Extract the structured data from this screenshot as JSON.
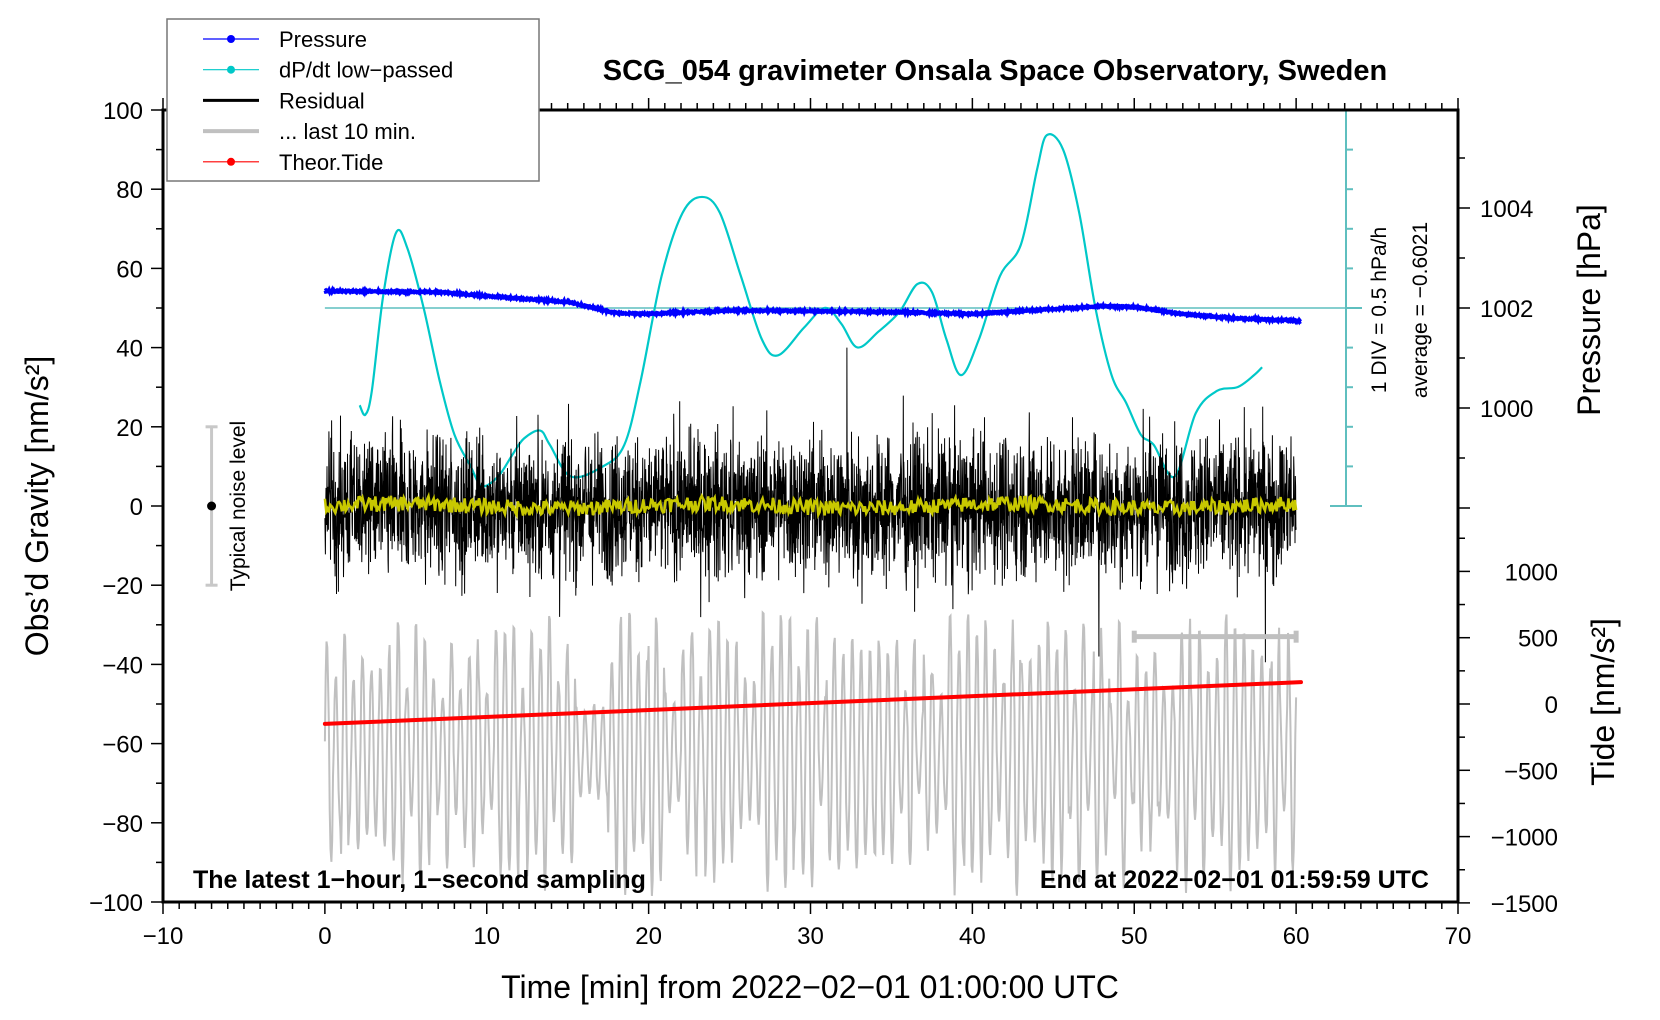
{
  "chart_data": {
    "type": "line",
    "title": "SCG_054 gravimeter Onsala Space Observatory, Sweden",
    "xlabel": "Time [min] from 2022−02−01 01:00:00 UTC",
    "ylabel": "Obs’d Gravity [nm/s²]",
    "ylabel_right_top": "Pressure [hPa]",
    "ylabel_right_bottom": "Tide [nm/s²]",
    "xlim": [
      -10,
      70
    ],
    "ylim": [
      -100,
      100
    ],
    "grid": false,
    "legend_position": "top-left",
    "x_ticks": [
      "−10",
      "0",
      "10",
      "20",
      "30",
      "40",
      "50",
      "60",
      "70"
    ],
    "x_tick_values": [
      -10,
      0,
      10,
      20,
      30,
      40,
      50,
      60,
      70
    ],
    "y_ticks": [
      "100",
      "80",
      "60",
      "40",
      "20",
      "0",
      "−20",
      "−40",
      "−60",
      "−80",
      "−100"
    ],
    "y_tick_values": [
      100,
      80,
      60,
      40,
      20,
      0,
      -20,
      -40,
      -60,
      -80,
      -100
    ],
    "pressure_ticks": [
      "1004",
      "1002",
      "1000"
    ],
    "pressure_tick_values": [
      1004,
      1002,
      1000
    ],
    "tide_ticks": [
      "1000",
      "500",
      "0",
      "−500",
      "−1000",
      "−1500"
    ],
    "tide_tick_values": [
      1000,
      500,
      0,
      -500,
      -1000,
      -1500
    ],
    "annotations": {
      "bottom_left": "The latest 1−hour, 1−second sampling",
      "bottom_right": "End at 2022−02−01 01:59:59 UTC",
      "dpdt_scale": "1 DIV = 0.5 hPa/h",
      "dpdt_average": "average = −0.6021",
      "noise_label": "Typical noise level"
    },
    "dpdt_scale_hpa_per_h_per_div": 0.5,
    "dpdt_average": -0.6021,
    "noise_level_range": [
      -20,
      20
    ],
    "noise_level_time": -7,
    "last10_bar": {
      "t": [
        50,
        60
      ],
      "value": -33
    },
    "legend": [
      {
        "label": "Pressure",
        "color": "#0000ff",
        "style": "line-dot"
      },
      {
        "label": "dP/dt low−passed",
        "color": "#00c8c8",
        "style": "line-dot"
      },
      {
        "label": "Residual",
        "color": "#000000",
        "style": "line"
      },
      {
        "label": "... last 10 min.",
        "color": "#c0c0c0",
        "style": "thick-line"
      },
      {
        "label": "Theor.Tide",
        "color": "#ff0000",
        "style": "line-dot"
      }
    ],
    "series": [
      {
        "name": "Pressure",
        "axis": "pressure_hPa",
        "color": "#0000ff",
        "t": [
          0,
          5,
          7,
          10,
          15,
          18,
          20,
          25,
          30,
          35,
          40,
          45,
          48,
          50,
          53,
          56,
          60.3
        ],
        "values": [
          1002.34,
          1002.32,
          1002.32,
          1002.24,
          1002.12,
          1001.9,
          1001.88,
          1001.95,
          1001.94,
          1001.92,
          1001.88,
          1001.98,
          1002.04,
          1002.02,
          1001.88,
          1001.8,
          1001.74
        ]
      },
      {
        "name": "dP/dt low-passed",
        "axis": "hPa_per_h",
        "color": "#00c8c8",
        "t": [
          2.15,
          2.5,
          2.9,
          3.6,
          4.4,
          5.1,
          6.1,
          7.1,
          8,
          9,
          9.7,
          10.7,
          11.6,
          12.3,
          13.3,
          13.9,
          15.2,
          17.2,
          18.5,
          19.5,
          20.8,
          22.1,
          23.3,
          24.4,
          25.7,
          27,
          28,
          29.6,
          30.9,
          31.9,
          32.9,
          34.2,
          35.5,
          36.6,
          37.5,
          38.4,
          39.3,
          40.4,
          41.7,
          43,
          44,
          44.6,
          45.6,
          46.6,
          47.6,
          48.6,
          49.5,
          50.4,
          51.2,
          52.5,
          53.8,
          55.1,
          56.4,
          57.4,
          57.9
        ],
        "values": [
          -1.83,
          -1.95,
          -1.65,
          -0.45,
          0.35,
          0.15,
          -0.6,
          -1.53,
          -2.2,
          -2.6,
          -2.85,
          -2.73,
          -2.45,
          -2.25,
          -2.15,
          -2.33,
          -2.73,
          -2.6,
          -2.33,
          -1.53,
          -0.2,
          0.6,
          0.8,
          0.6,
          -0.2,
          -1.0,
          -1.2,
          -0.85,
          -0.6,
          -0.8,
          -1.1,
          -0.9,
          -0.65,
          -0.3,
          -0.4,
          -1.0,
          -1.45,
          -1.0,
          -0.2,
          0.2,
          1.15,
          1.58,
          1.4,
          0.6,
          -0.6,
          -1.45,
          -1.8,
          -2.2,
          -2.33,
          -2.73,
          -1.93,
          -1.65,
          -1.6,
          -1.45,
          -1.35
        ]
      },
      {
        "name": "Residual",
        "axis": "gravity",
        "color": "#000000",
        "t_range": [
          0,
          60
        ],
        "sampling_s": 1,
        "typical_amplitude": 20,
        "max_amplitude": 40
      },
      {
        "name": "Residual smoothed",
        "axis": "gravity",
        "color": "#c8c800",
        "t_range": [
          0,
          60
        ],
        "mean": 0,
        "typical_amplitude": 2
      },
      {
        "name": "... last 10 min.",
        "axis": "gravity",
        "color": "#c0c0c0",
        "t_range": [
          0,
          60
        ],
        "center": -62,
        "typical_amplitude": 25,
        "max_amplitude": 45
      },
      {
        "name": "Theor.Tide",
        "axis": "tide_nm_s2",
        "color": "#ff0000",
        "t": [
          0,
          60.3
        ],
        "values": [
          -150,
          165
        ]
      }
    ]
  }
}
